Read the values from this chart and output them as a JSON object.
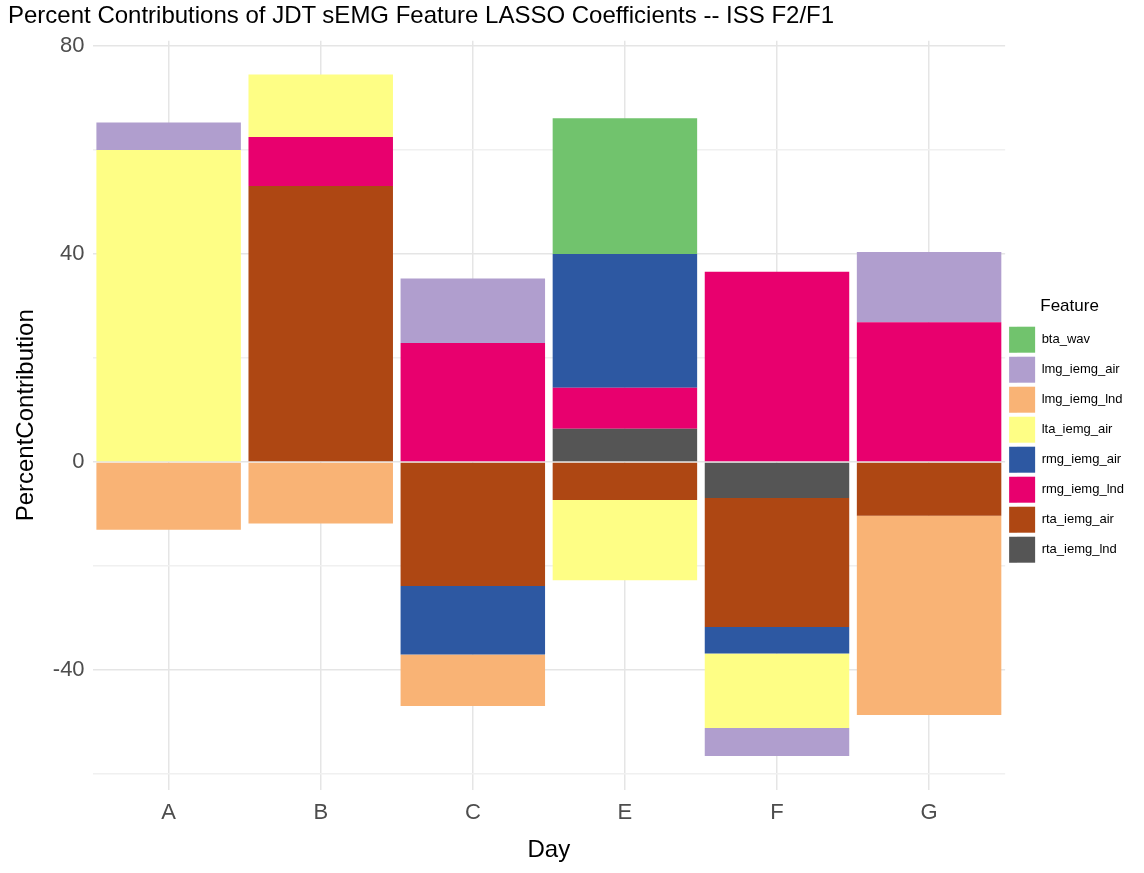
{
  "chart_data": {
    "type": "bar",
    "title": "Percent Contributions of JDT sEMG Feature LASSO Coefficients -- ISS F2/F1",
    "xlabel": "Day",
    "ylabel": "PercentContribution",
    "legend_title": "Feature",
    "categories": [
      "A",
      "B",
      "C",
      "E",
      "F",
      "G"
    ],
    "stacked": true,
    "ylim": [
      -63,
      81
    ],
    "yticks": [
      {
        "value": -60,
        "label": null
      },
      -40,
      {
        "value": -20,
        "label": null
      },
      0,
      {
        "value": 20,
        "label": null
      },
      40,
      {
        "value": 60,
        "label": null
      },
      80
    ],
    "grid": true,
    "legend": "right",
    "series": [
      {
        "name": "rta_iemg_lnd",
        "color": "#555555",
        "values": [
          null,
          null,
          null,
          6.4,
          -6.9,
          null
        ]
      },
      {
        "name": "rta_iemg_air",
        "color": "#ae4713",
        "values": [
          null,
          53.1,
          -23.8,
          -7.3,
          -24.8,
          -10.3
        ]
      },
      {
        "name": "rmg_iemg_lnd",
        "color": "#e8006e",
        "values": [
          null,
          9.4,
          22.9,
          7.9,
          36.6,
          26.9
        ]
      },
      {
        "name": "rmg_iemg_air",
        "color": "#2d58a2",
        "values": [
          null,
          null,
          -13.2,
          25.7,
          -5.1,
          null
        ]
      },
      {
        "name": "lta_iemg_air",
        "color": "#fefe85",
        "values": [
          60,
          12,
          null,
          -15.4,
          -14.3,
          null
        ]
      },
      {
        "name": "lmg_iemg_lnd",
        "color": "#f9b375",
        "values": [
          -13,
          -11.8,
          -9.9,
          null,
          null,
          -38.3
        ]
      },
      {
        "name": "lmg_iemg_air",
        "color": "#b09ece",
        "values": [
          5.3,
          null,
          12.4,
          null,
          -5.4,
          13.5
        ]
      },
      {
        "name": "bta_wav",
        "color": "#71c36d",
        "values": [
          null,
          null,
          null,
          26.1,
          null,
          null
        ]
      }
    ]
  }
}
